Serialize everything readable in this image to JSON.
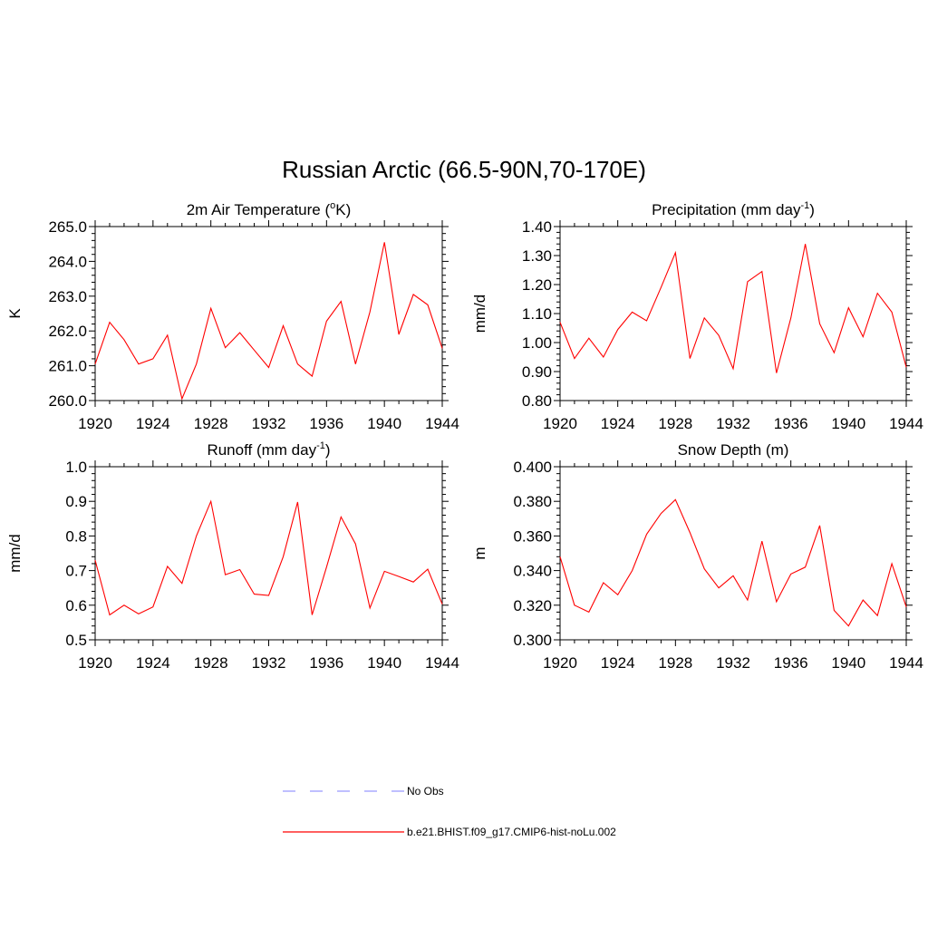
{
  "figure": {
    "title": "Russian Arctic (66.5-90N,70-170E)"
  },
  "legend": {
    "obs_label": "No Obs",
    "obs_color": "#9999ff",
    "model_label": "b.e21.BHIST.f09_g17.CMIP6-hist-noLu.002",
    "model_color": "#ff0000"
  },
  "chart_data": [
    {
      "type": "line",
      "title": "2m Air Temperature (",
      "title_sup": "o",
      "title_after": "K)",
      "ylabel": "K",
      "xlim": [
        1920,
        1944
      ],
      "ylim": [
        260.0,
        265.0
      ],
      "yticks": [
        260.0,
        261.0,
        262.0,
        263.0,
        264.0,
        265.0
      ],
      "ytick_labels": [
        "260.0",
        "261.0",
        "262.0",
        "263.0",
        "264.0",
        "265.0"
      ],
      "xticks": [
        1920,
        1924,
        1928,
        1932,
        1936,
        1940,
        1944
      ],
      "xtick_labels": [
        "1920",
        "1924",
        "1928",
        "1932",
        "1936",
        "1940",
        "1944"
      ],
      "x": [
        1920,
        1921,
        1922,
        1923,
        1924,
        1925,
        1926,
        1927,
        1928,
        1929,
        1930,
        1931,
        1932,
        1933,
        1934,
        1935,
        1936,
        1937,
        1938,
        1939,
        1940,
        1941,
        1942,
        1943,
        1944
      ],
      "series": [
        {
          "values": [
            261.05,
            262.25,
            261.75,
            261.05,
            261.2,
            261.88,
            260.05,
            261.05,
            262.65,
            261.52,
            261.95,
            261.45,
            260.95,
            262.15,
            261.05,
            260.7,
            262.28,
            262.85,
            261.05,
            262.55,
            264.55,
            261.9,
            263.05,
            262.75,
            261.5
          ]
        }
      ]
    },
    {
      "type": "line",
      "title": "Precipitation (mm day",
      "title_sup": "-1",
      "title_after": ")",
      "ylabel": "mm/d",
      "xlim": [
        1920,
        1944
      ],
      "ylim": [
        0.8,
        1.4
      ],
      "yticks": [
        0.8,
        0.9,
        1.0,
        1.1,
        1.2,
        1.3,
        1.4
      ],
      "ytick_labels": [
        "0.80",
        "0.90",
        "1.00",
        "1.10",
        "1.20",
        "1.30",
        "1.40"
      ],
      "xticks": [
        1920,
        1924,
        1928,
        1932,
        1936,
        1940,
        1944
      ],
      "xtick_labels": [
        "1920",
        "1924",
        "1928",
        "1932",
        "1936",
        "1940",
        "1944"
      ],
      "x": [
        1920,
        1921,
        1922,
        1923,
        1924,
        1925,
        1926,
        1927,
        1928,
        1929,
        1930,
        1931,
        1932,
        1933,
        1934,
        1935,
        1936,
        1937,
        1938,
        1939,
        1940,
        1941,
        1942,
        1943,
        1944
      ],
      "series": [
        {
          "values": [
            1.07,
            0.945,
            1.015,
            0.95,
            1.045,
            1.105,
            1.075,
            1.19,
            1.31,
            0.945,
            1.085,
            1.025,
            0.91,
            1.21,
            1.245,
            0.895,
            1.085,
            1.34,
            1.065,
            0.965,
            1.12,
            1.02,
            1.17,
            1.105,
            0.915
          ]
        }
      ]
    },
    {
      "type": "line",
      "title": "Runoff (mm day",
      "title_sup": "-1",
      "title_after": ")",
      "ylabel": "mm/d",
      "xlim": [
        1920,
        1944
      ],
      "ylim": [
        0.5,
        1.0
      ],
      "yticks": [
        0.5,
        0.6,
        0.7,
        0.8,
        0.9,
        1.0
      ],
      "ytick_labels": [
        "0.5",
        "0.6",
        "0.7",
        "0.8",
        "0.9",
        "1.0"
      ],
      "xticks": [
        1920,
        1924,
        1928,
        1932,
        1936,
        1940,
        1944
      ],
      "xtick_labels": [
        "1920",
        "1924",
        "1928",
        "1932",
        "1936",
        "1940",
        "1944"
      ],
      "x": [
        1920,
        1921,
        1922,
        1923,
        1924,
        1925,
        1926,
        1927,
        1928,
        1929,
        1930,
        1931,
        1932,
        1933,
        1934,
        1935,
        1936,
        1937,
        1938,
        1939,
        1940,
        1941,
        1942,
        1943,
        1944
      ],
      "series": [
        {
          "values": [
            0.73,
            0.572,
            0.6,
            0.575,
            0.595,
            0.712,
            0.663,
            0.8,
            0.9,
            0.688,
            0.703,
            0.632,
            0.628,
            0.74,
            0.898,
            0.572,
            0.71,
            0.855,
            0.777,
            0.592,
            0.698,
            0.683,
            0.667,
            0.704,
            0.603
          ]
        }
      ]
    },
    {
      "type": "line",
      "title": "Snow Depth (m)",
      "title_sup": "",
      "title_after": "",
      "ylabel": "m",
      "xlim": [
        1920,
        1944
      ],
      "ylim": [
        0.3,
        0.4
      ],
      "yticks": [
        0.3,
        0.32,
        0.34,
        0.36,
        0.38,
        0.4
      ],
      "ytick_labels": [
        "0.300",
        "0.320",
        "0.340",
        "0.360",
        "0.380",
        "0.400"
      ],
      "xticks": [
        1920,
        1924,
        1928,
        1932,
        1936,
        1940,
        1944
      ],
      "xtick_labels": [
        "1920",
        "1924",
        "1928",
        "1932",
        "1936",
        "1940",
        "1944"
      ],
      "x": [
        1920,
        1921,
        1922,
        1923,
        1924,
        1925,
        1926,
        1927,
        1928,
        1929,
        1930,
        1931,
        1932,
        1933,
        1934,
        1935,
        1936,
        1937,
        1938,
        1939,
        1940,
        1941,
        1942,
        1943,
        1944
      ],
      "series": [
        {
          "values": [
            0.348,
            0.32,
            0.316,
            0.333,
            0.326,
            0.34,
            0.361,
            0.373,
            0.381,
            0.362,
            0.341,
            0.33,
            0.337,
            0.323,
            0.357,
            0.322,
            0.338,
            0.342,
            0.366,
            0.317,
            0.308,
            0.323,
            0.314,
            0.344,
            0.319
          ]
        }
      ]
    }
  ]
}
